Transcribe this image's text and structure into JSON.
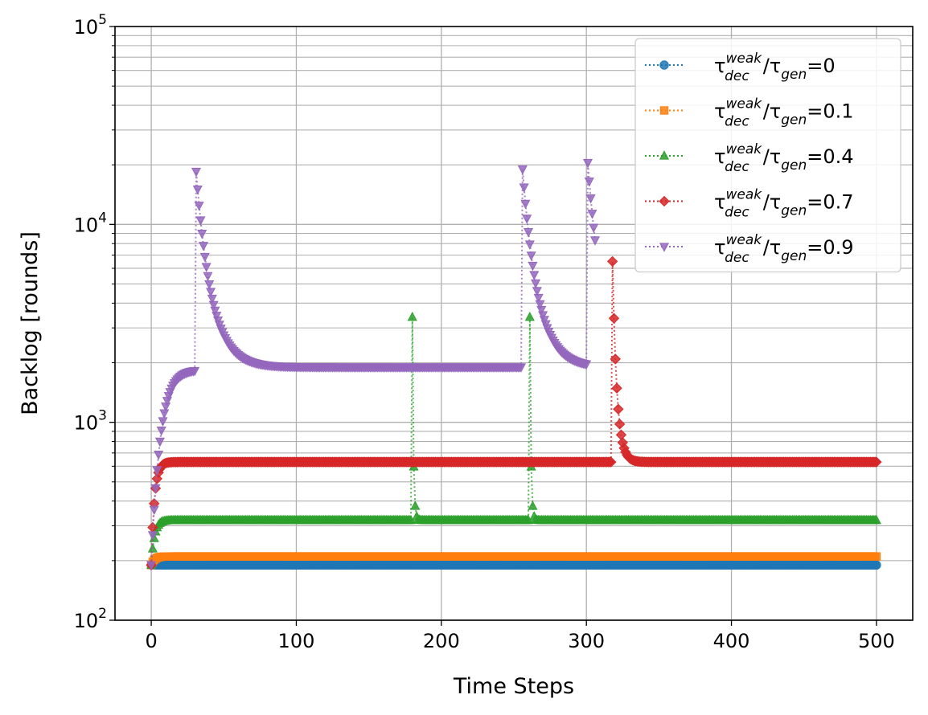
{
  "chart_data": {
    "type": "line",
    "title": "",
    "xlabel": "Time Steps",
    "ylabel": "Backlog [rounds]",
    "xlim": [
      -25,
      525
    ],
    "ylim": [
      100,
      100000
    ],
    "yscale": "log",
    "grid": true,
    "legend_position": "top-right",
    "x_ticks": [
      0,
      100,
      200,
      300,
      400,
      500
    ],
    "x_tick_labels": [
      "0",
      "100",
      "200",
      "300",
      "400",
      "500"
    ],
    "y_ticks": [
      100,
      1000,
      10000,
      100000
    ],
    "y_tick_labels": [
      {
        "base": "10",
        "exp": "2"
      },
      {
        "base": "10",
        "exp": "3"
      },
      {
        "base": "10",
        "exp": "4"
      },
      {
        "base": "10",
        "exp": "5"
      }
    ],
    "legend_template": {
      "tau": "τ",
      "sub_dec": "dec",
      "sup_weak": "weak",
      "sub_gen": "gen"
    },
    "series": [
      {
        "name": "τdecweak/τgen=0",
        "ratio_label": "0",
        "color": "#1f77b4",
        "marker": "circle",
        "steady": 190,
        "jumps": []
      },
      {
        "name": "τdecweak/τgen=0.1",
        "ratio_label": "0.1",
        "color": "#ff7f0e",
        "marker": "square",
        "steady": 210,
        "jumps": []
      },
      {
        "name": "τdecweak/τgen=0.4",
        "ratio_label": "0.4",
        "color": "#2ca02c",
        "marker": "triangle-up",
        "steady": 320,
        "jumps": [
          {
            "t": 180,
            "peak": 3400,
            "tau": 0.75
          },
          {
            "t": 261,
            "peak": 3400,
            "tau": 0.75
          }
        ]
      },
      {
        "name": "τdecweak/τgen=0.7",
        "ratio_label": "0.7",
        "color": "#d62728",
        "marker": "diamond",
        "steady": 630,
        "jumps": [
          {
            "t": 318,
            "peak": 6500,
            "tau": 3.0
          }
        ]
      },
      {
        "name": "τdecweak/τgen=0.9",
        "ratio_label": "0.9",
        "color": "#9467bd",
        "marker": "triangle-down",
        "steady": 1900,
        "rise_steady": 1850,
        "rise_end": 30,
        "end": 306,
        "jumps": [
          {
            "t": 31,
            "peak": 18500,
            "tau": 10.5
          },
          {
            "t": 256,
            "peak": 19000,
            "tau": 10.5
          },
          {
            "t": 301,
            "peak": 20500,
            "tau": 10.5
          }
        ]
      }
    ],
    "start_value": 190
  }
}
